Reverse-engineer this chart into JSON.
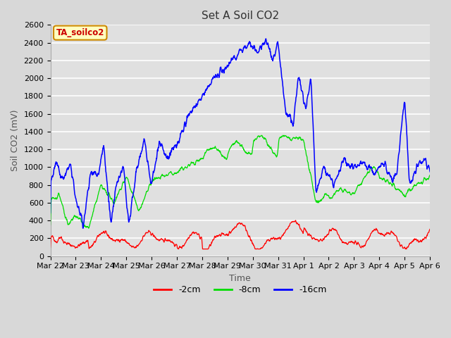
{
  "title": "Set A Soil CO2",
  "xlabel": "Time",
  "ylabel": "Soil CO2 (mV)",
  "ylim": [
    0,
    2600
  ],
  "yticks": [
    0,
    200,
    400,
    600,
    800,
    1000,
    1200,
    1400,
    1600,
    1800,
    2000,
    2200,
    2400,
    2600
  ],
  "xtick_labels": [
    "Mar 22",
    "Mar 23",
    "Mar 24",
    "Mar 25",
    "Mar 26",
    "Mar 27",
    "Mar 28",
    "Mar 29",
    "Mar 30",
    "Mar 31",
    "Apr 1",
    "Apr 2",
    "Apr 3",
    "Apr 4",
    "Apr 5",
    "Apr 6"
  ],
  "annotation_label": "TA_soilco2",
  "legend_entries": [
    "-2cm",
    "-8cm",
    "-16cm"
  ],
  "legend_colors": [
    "#ff0000",
    "#00dd00",
    "#0000ff"
  ],
  "line_colors": [
    "#ff0000",
    "#00dd00",
    "#0000ff"
  ],
  "fig_bg_color": "#d8d8d8",
  "plot_bg_color": "#e0e0e0",
  "grid_color": "#ffffff",
  "title_fontsize": 11,
  "axis_label_fontsize": 9,
  "tick_fontsize": 8
}
